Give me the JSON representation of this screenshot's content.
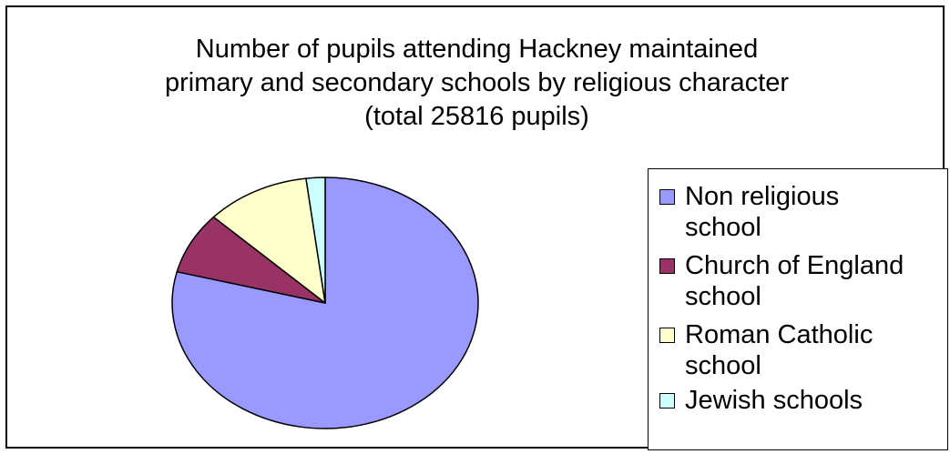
{
  "chart_data": {
    "type": "pie",
    "title_lines": [
      "Number of pupils attending Hackney maintained",
      "primary and secondary schools by religious character",
      "(total 25816 pupils)"
    ],
    "series": [
      {
        "name": "Non religious school",
        "legend_lines": [
          "Non religious",
          "school"
        ],
        "value": 79,
        "color": "#9999ff"
      },
      {
        "name": "Church of England school",
        "legend_lines": [
          "Church of England",
          "school"
        ],
        "value": 8,
        "color": "#993366"
      },
      {
        "name": "Roman Catholic school",
        "legend_lines": [
          "Roman Catholic",
          "school"
        ],
        "value": 11,
        "color": "#ffffcc"
      },
      {
        "name": "Jewish schools",
        "legend_lines": [
          "Jewish schools"
        ],
        "value": 2,
        "color": "#ccffff"
      }
    ],
    "value_units": "percent (estimated)",
    "start_angle": "12 o'clock",
    "direction": "clockwise",
    "legend_position": "right",
    "grid": false
  }
}
